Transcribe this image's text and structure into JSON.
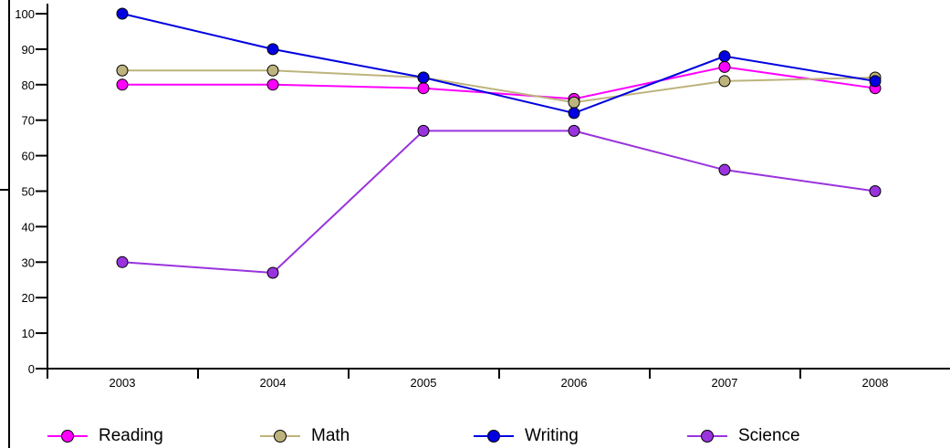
{
  "chart_data": {
    "type": "line",
    "title": "",
    "xlabel": "",
    "ylabel": "",
    "categories": [
      "2003",
      "2004",
      "2005",
      "2006",
      "2007",
      "2008"
    ],
    "ylim": [
      0,
      100
    ],
    "yticks": [
      0,
      10,
      20,
      30,
      40,
      50,
      60,
      70,
      80,
      90,
      100
    ],
    "grid": false,
    "legend_position": "bottom",
    "series": [
      {
        "name": "Reading",
        "color": "#ff00ff",
        "values": [
          80,
          80,
          79,
          76,
          85,
          79
        ]
      },
      {
        "name": "Math",
        "color": "#bdb47d",
        "values": [
          84,
          84,
          82,
          75,
          81,
          82
        ]
      },
      {
        "name": "Writing",
        "color": "#0000e0",
        "values": [
          100,
          90,
          82,
          72,
          88,
          81
        ]
      },
      {
        "name": "Science",
        "color": "#9933dd",
        "values": [
          30,
          27,
          67,
          67,
          56,
          50
        ]
      }
    ]
  }
}
